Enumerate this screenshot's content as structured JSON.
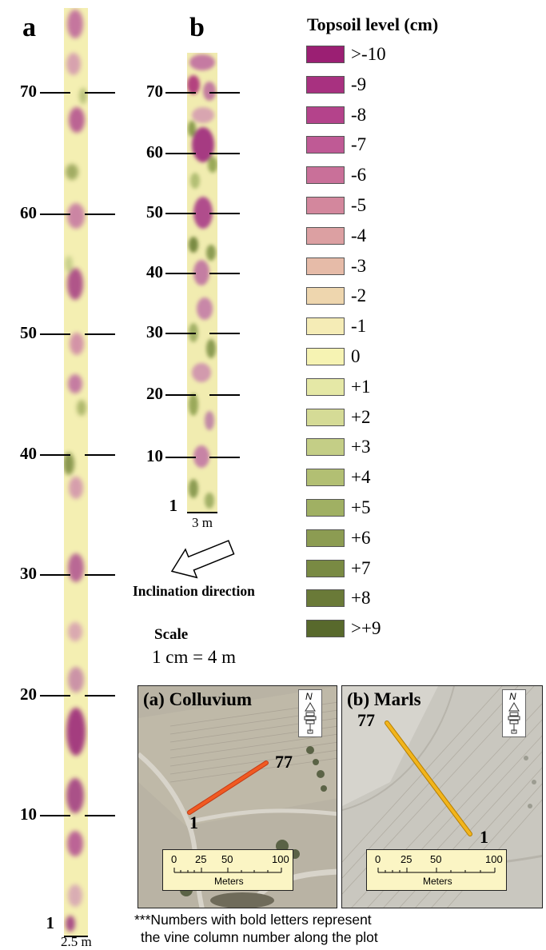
{
  "panel_a": {
    "label": "a",
    "width_label": "2.5 m",
    "row_ticks": [
      "70",
      "60",
      "50",
      "40",
      "30",
      "20",
      "10",
      "1"
    ]
  },
  "panel_b": {
    "label": "b",
    "width_label": "3 m",
    "row_ticks": [
      "70",
      "60",
      "50",
      "40",
      "30",
      "20",
      "10",
      "1"
    ]
  },
  "inclination": {
    "label": "Inclination direction"
  },
  "scale": {
    "title": "Scale",
    "value": "1 cm = 4 m"
  },
  "legend": {
    "title": "Topsoil level (cm)",
    "items": [
      {
        "label": ">-10",
        "color": "#9b1f73"
      },
      {
        "label": "-9",
        "color": "#a83180"
      },
      {
        "label": "-8",
        "color": "#b4438b"
      },
      {
        "label": "-7",
        "color": "#bf5a95"
      },
      {
        "label": "-6",
        "color": "#c97099"
      },
      {
        "label": "-5",
        "color": "#d3879d"
      },
      {
        "label": "-4",
        "color": "#dca0a2"
      },
      {
        "label": "-3",
        "color": "#e6bba8"
      },
      {
        "label": "-2",
        "color": "#eed6ae"
      },
      {
        "label": "-1",
        "color": "#f5ecb6"
      },
      {
        "label": "0",
        "color": "#f6f3b3"
      },
      {
        "label": "+1",
        "color": "#e5e8a6"
      },
      {
        "label": "+2",
        "color": "#d5db96"
      },
      {
        "label": "+3",
        "color": "#c4ce86"
      },
      {
        "label": "+4",
        "color": "#b2bf73"
      },
      {
        "label": "+5",
        "color": "#a0b063"
      },
      {
        "label": "+6",
        "color": "#8c9c52"
      },
      {
        "label": "+7",
        "color": "#798a43"
      },
      {
        "label": "+8",
        "color": "#6a7a38"
      },
      {
        "label": ">+9",
        "color": "#58692c"
      }
    ]
  },
  "maps": [
    {
      "title": "(a) Colluvium",
      "start_label": "1",
      "end_label": "77",
      "line_color": "#f05a22",
      "north_label": "N",
      "scale_ticks": [
        "0",
        "25",
        "50",
        "100"
      ],
      "scale_unit": "Meters"
    },
    {
      "title": "(b) Marls",
      "start_label": "1",
      "end_label": "77",
      "line_color": "#f2b51c",
      "north_label": "N",
      "scale_ticks": [
        "0",
        "25",
        "50",
        "100"
      ],
      "scale_unit": "Meters"
    }
  ],
  "footnote": {
    "line1": "***Numbers with bold letters represent",
    "line2": "the vine column number along the plot"
  }
}
